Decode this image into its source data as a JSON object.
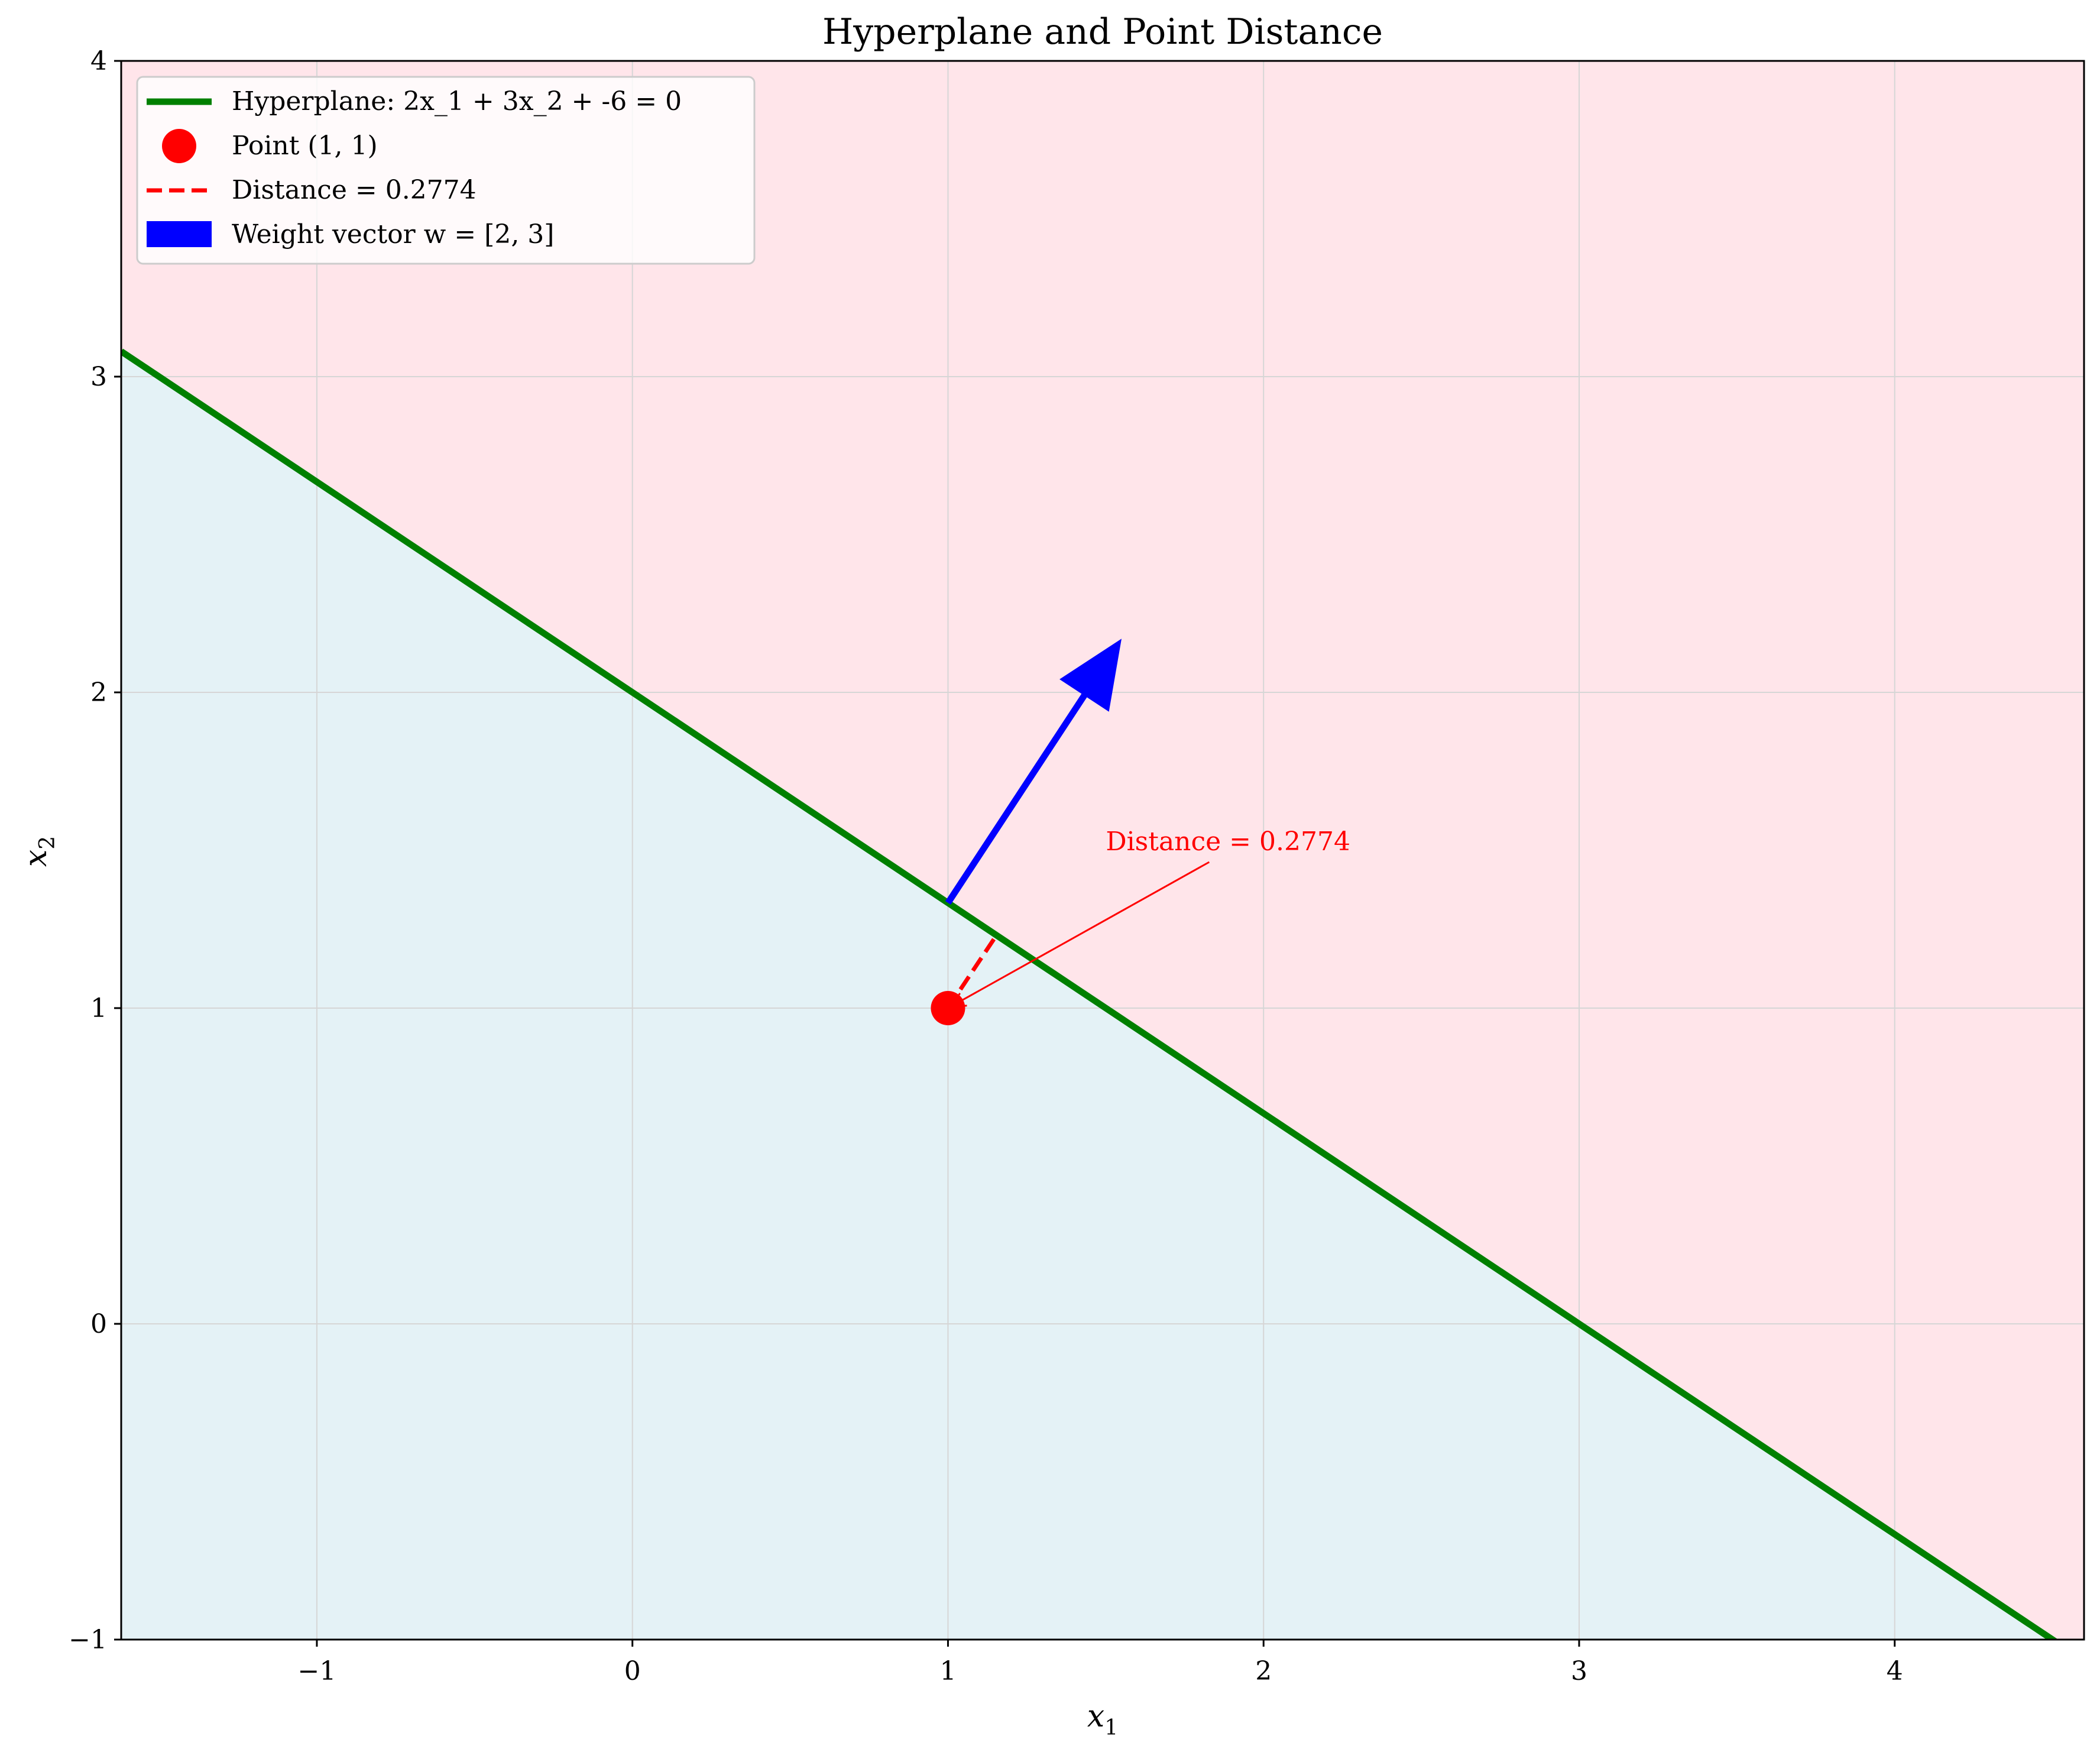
{
  "chart_data": {
    "type": "line",
    "title": "Hyperplane and Point Distance",
    "xlabel": "x",
    "xlabel_sub": "1",
    "ylabel": "x",
    "ylabel_sub": "2",
    "xlim": [
      -1.62,
      4.6
    ],
    "ylim": [
      -1,
      4
    ],
    "xticks": [
      -1,
      0,
      1,
      2,
      3,
      4
    ],
    "yticks": [
      -1,
      0,
      1,
      2,
      3,
      4
    ],
    "grid": true,
    "legend_position": "upper-left",
    "hyperplane": {
      "w": [
        2,
        3
      ],
      "b": -6,
      "label": "Hyperplane: 2x_1 + 3x_2 + -6 = 0"
    },
    "point": {
      "x": 1,
      "y": 1,
      "label": "Point (1, 1)"
    },
    "distance": {
      "value": 0.2774,
      "from": [
        1,
        1
      ],
      "to": [
        1.1538,
        1.2308
      ],
      "label": "Distance = 0.2774"
    },
    "weight_vector": {
      "from": [
        1,
        1.3333
      ],
      "to": [
        1.55,
        2.17
      ],
      "label": "Weight vector w = [2, 3]"
    },
    "annotation": {
      "text": "Distance = 0.2774",
      "text_at": [
        1.5,
        1.5
      ],
      "arrow_to": [
        1,
        1
      ]
    },
    "regions": {
      "positive": "pink",
      "negative": "light-blue"
    }
  },
  "colors": {
    "hyperplane": "#008000",
    "point": "#ff0000",
    "distance": "#ff0000",
    "vector": "#0000ff",
    "positive_region": "#ffe5ea",
    "negative_region": "#e4f2f6",
    "grid": "#d6d6d6"
  }
}
